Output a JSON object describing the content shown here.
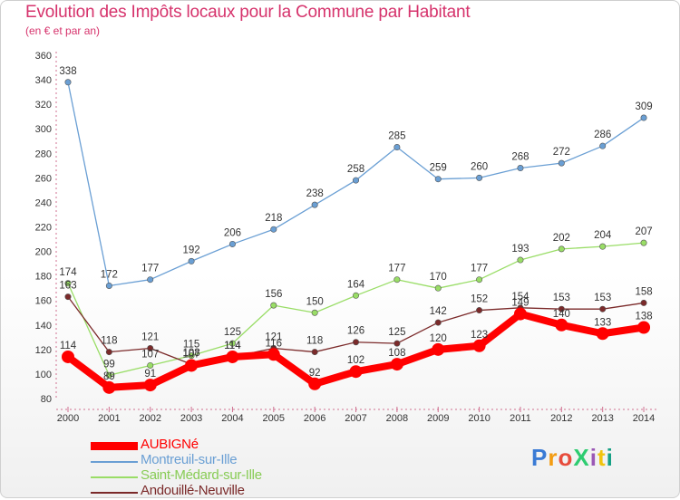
{
  "header": {
    "title": "Evolution des Impôts locaux pour la Commune par Habitant",
    "subtitle": "(en € et par an)"
  },
  "logo": {
    "text": "ProXiti",
    "colors": [
      "#3a7bd5",
      "#f39c12",
      "#e74c3c",
      "#2ecc71",
      "#9b59b6",
      "#f1c40f",
      "#16a085"
    ]
  },
  "chart_data": {
    "type": "line",
    "title": "Evolution des Impôts locaux pour la Commune par Habitant",
    "subtitle": "(en € et par an)",
    "xlabel": "",
    "ylabel": "",
    "ylim": [
      80,
      360
    ],
    "yticks": [
      80,
      100,
      120,
      140,
      160,
      180,
      200,
      220,
      240,
      260,
      280,
      300,
      320,
      340,
      360
    ],
    "x": [
      "2000",
      "2001",
      "2002",
      "2003",
      "2004",
      "2005",
      "2006",
      "2007",
      "2008",
      "2009",
      "2010",
      "2011",
      "2012",
      "2013",
      "2014"
    ],
    "grid": false,
    "legend_position": "bottom-left",
    "series": [
      {
        "name": "AUBIGNé",
        "color": "#ff0000",
        "values": [
          114,
          89,
          91,
          107,
          114,
          116,
          92,
          102,
          108,
          120,
          123,
          149,
          140,
          133,
          138
        ]
      },
      {
        "name": "Montreuil-sur-Ille",
        "color": "#6a9fd4",
        "values": [
          338,
          172,
          177,
          192,
          206,
          218,
          238,
          258,
          285,
          259,
          260,
          268,
          272,
          286,
          309
        ]
      },
      {
        "name": "Saint-Médard-sur-Ille",
        "color": "#99dd66",
        "values": [
          174,
          99,
          107,
          115,
          125,
          156,
          150,
          164,
          177,
          170,
          177,
          193,
          202,
          204,
          207
        ]
      },
      {
        "name": "Andouillé-Neuville",
        "color": "#7b2a2a",
        "values": [
          163,
          118,
          121,
          108,
          114,
          121,
          118,
          126,
          125,
          142,
          152,
          154,
          153,
          153,
          158
        ]
      }
    ]
  }
}
